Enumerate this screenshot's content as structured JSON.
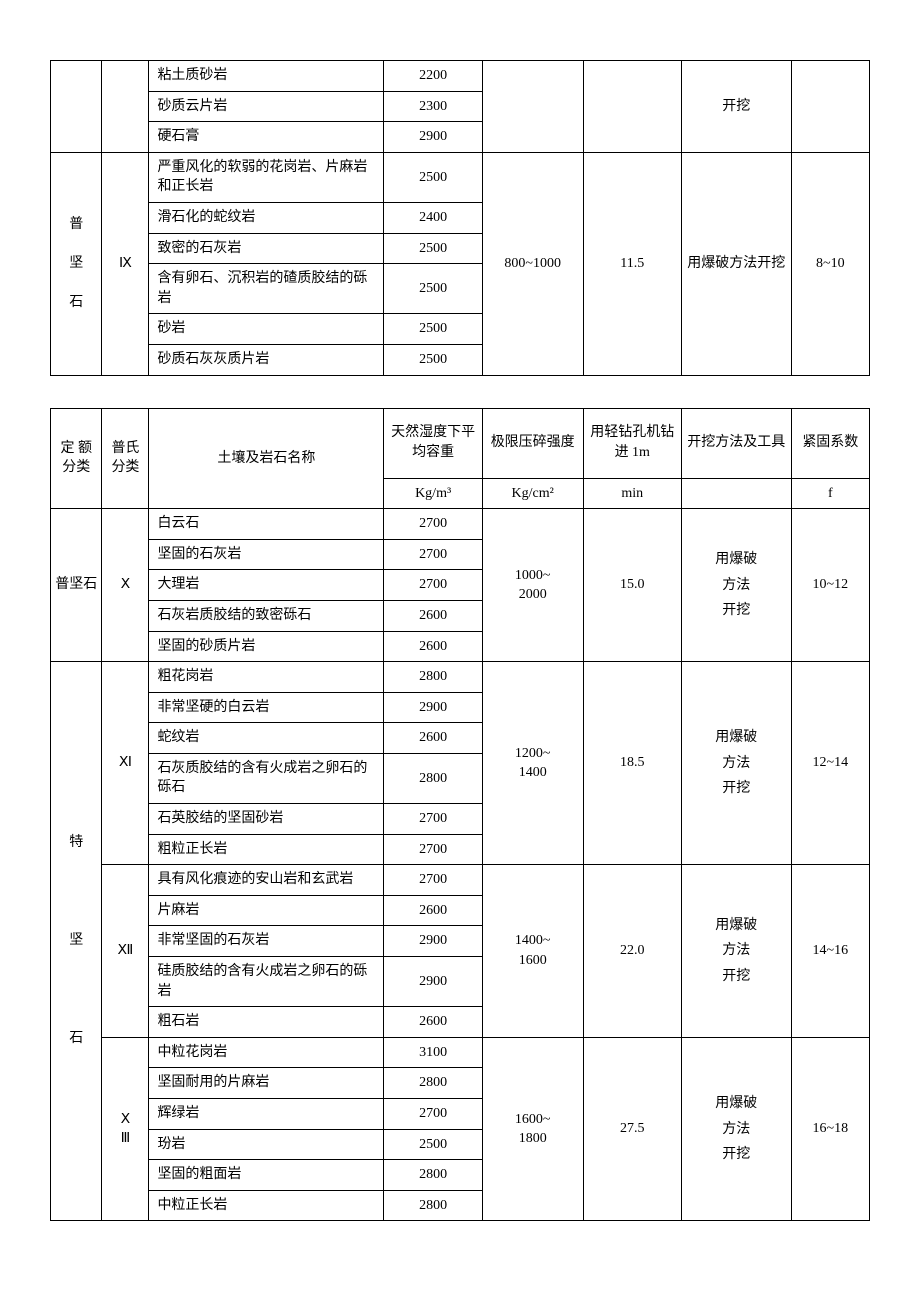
{
  "table1": {
    "empty_cat1": "",
    "empty_cat2": "",
    "prev_rows": [
      {
        "name": "粘土质砂岩",
        "density": "2200"
      },
      {
        "name": "砂质云片岩",
        "density": "2300"
      },
      {
        "name": "硬石膏",
        "density": "2900"
      }
    ],
    "prev_method": "开挖",
    "group": {
      "cat1": "普\n\n坚\n\n石",
      "cat2": "Ⅸ",
      "rows": [
        {
          "name": "严重风化的软弱的花岗岩、片麻岩和正长岩",
          "density": "2500"
        },
        {
          "name": "滑石化的蛇纹岩",
          "density": "2400"
        },
        {
          "name": "致密的石灰岩",
          "density": "2500"
        },
        {
          "name": "含有卵石、沉积岩的碴质胶结的砾岩",
          "density": "2500"
        },
        {
          "name": "砂岩",
          "density": "2500"
        },
        {
          "name": "砂质石灰灰质片岩",
          "density": "2500"
        }
      ],
      "strength": "800~1000",
      "drill": "11.5",
      "method": "用爆破方法开挖",
      "coef": "8~10"
    }
  },
  "headers": {
    "cat1": "定 额分类",
    "cat2": "普氏分类",
    "name": "土壤及岩石名称",
    "density": "天然湿度下平均容重",
    "strength": "极限压碎强度",
    "drill": "用轻钻孔机钻进 1m",
    "method": "开挖方法及工具",
    "coef": "紧固系数",
    "density_unit": "Kg/m³",
    "strength_unit": "Kg/cm²",
    "drill_unit": "min",
    "method_unit": "",
    "coef_unit": "f"
  },
  "table2": {
    "groups": [
      {
        "cat1": "普坚石",
        "cat1_span": 5,
        "cat2": "Ⅹ",
        "rows": [
          {
            "name": "白云石",
            "density": "2700"
          },
          {
            "name": "坚固的石灰岩",
            "density": "2700"
          },
          {
            "name": "大理岩",
            "density": "2700"
          },
          {
            "name": "石灰岩质胶结的致密砾石",
            "density": "2600"
          },
          {
            "name": "坚固的砂质片岩",
            "density": "2600"
          }
        ],
        "strength": "1000~\n2000",
        "drill": "15.0",
        "method": "用爆破\n方法\n开挖",
        "coef": "10~12"
      }
    ],
    "bigcat": {
      "cat1": "特\n\n\n\n\n坚\n\n\n\n\n石",
      "subgroups": [
        {
          "cat2": "Ⅺ",
          "rows": [
            {
              "name": "粗花岗岩",
              "density": "2800"
            },
            {
              "name": "非常坚硬的白云岩",
              "density": "2900"
            },
            {
              "name": "蛇纹岩",
              "density": "2600"
            },
            {
              "name": "石灰质胶结的含有火成岩之卵石的砾石",
              "density": "2800"
            },
            {
              "name": "石英胶结的坚固砂岩",
              "density": "2700"
            },
            {
              "name": "粗粒正长岩",
              "density": "2700"
            }
          ],
          "strength": "1200~\n1400",
          "drill": "18.5",
          "method": "用爆破\n方法\n开挖",
          "coef": "12~14"
        },
        {
          "cat2": "Ⅻ",
          "rows": [
            {
              "name": "具有风化痕迹的安山岩和玄武岩",
              "density": "2700"
            },
            {
              "name": "片麻岩",
              "density": "2600"
            },
            {
              "name": "非常坚固的石灰岩",
              "density": "2900"
            },
            {
              "name": "硅质胶结的含有火成岩之卵石的砾岩",
              "density": "2900"
            },
            {
              "name": "粗石岩",
              "density": "2600"
            }
          ],
          "strength": "1400~\n1600",
          "drill": "22.0",
          "method": "用爆破\n方法\n开挖",
          "coef": "14~16"
        },
        {
          "cat2": "Ⅹ\nⅢ",
          "rows": [
            {
              "name": "中粒花岗岩",
              "density": "3100"
            },
            {
              "name": "坚固耐用的片麻岩",
              "density": "2800"
            },
            {
              "name": "辉绿岩",
              "density": "2700"
            },
            {
              "name": "玢岩",
              "density": "2500"
            },
            {
              "name": "坚固的粗面岩",
              "density": "2800"
            },
            {
              "name": "中粒正长岩",
              "density": "2800"
            }
          ],
          "strength": "1600~\n1800",
          "drill": "27.5",
          "method": "用爆破\n方法\n开挖",
          "coef": "16~18"
        }
      ]
    }
  }
}
